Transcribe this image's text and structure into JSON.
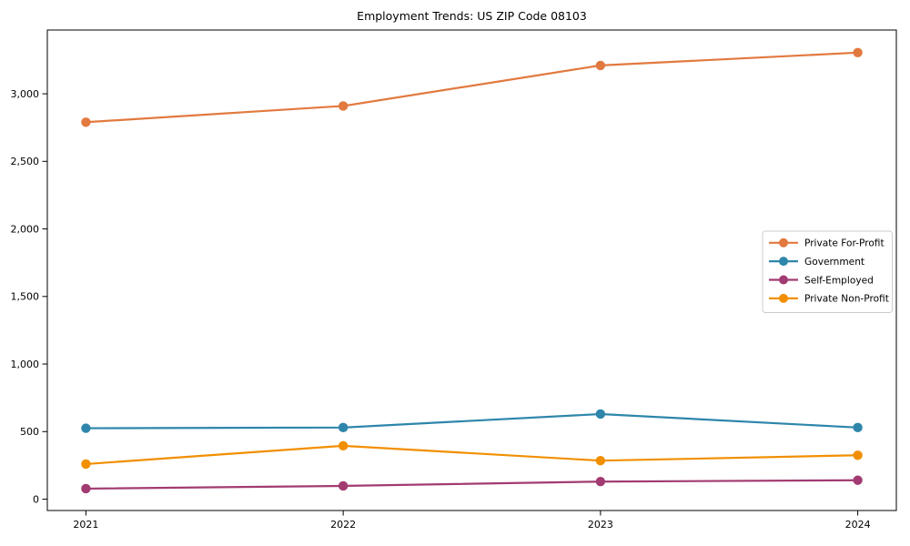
{
  "chart_data": {
    "type": "line",
    "title": "Employment Trends: US ZIP Code 08103",
    "xlabel": "",
    "ylabel": "",
    "categories": [
      "2021",
      "2022",
      "2023",
      "2024"
    ],
    "series": [
      {
        "name": "Private For-Profit",
        "color": "#E2793F",
        "values": [
          2790,
          2910,
          3210,
          3305
        ]
      },
      {
        "name": "Government",
        "color": "#2E86AB",
        "values": [
          525,
          530,
          630,
          530
        ]
      },
      {
        "name": "Self-Employed",
        "color": "#A23B72",
        "values": [
          78,
          98,
          130,
          140
        ]
      },
      {
        "name": "Private Non-Profit",
        "color": "#F18F01",
        "values": [
          260,
          395,
          285,
          325
        ]
      }
    ],
    "yticks": [
      0,
      500,
      1000,
      1500,
      2000,
      2500,
      3000
    ],
    "ytick_labels": [
      "0",
      "500",
      "1,000",
      "1,500",
      "2,000",
      "2,500",
      "3,000"
    ],
    "ylim": [
      -84,
      3472
    ],
    "grid": false,
    "legend_position": "center-right",
    "marker": "circle",
    "line_width": 2.2,
    "marker_radius": 5.2,
    "axis_color": "#000000",
    "legend_border_color": "#cccccc",
    "background_color": "#ffffff"
  }
}
